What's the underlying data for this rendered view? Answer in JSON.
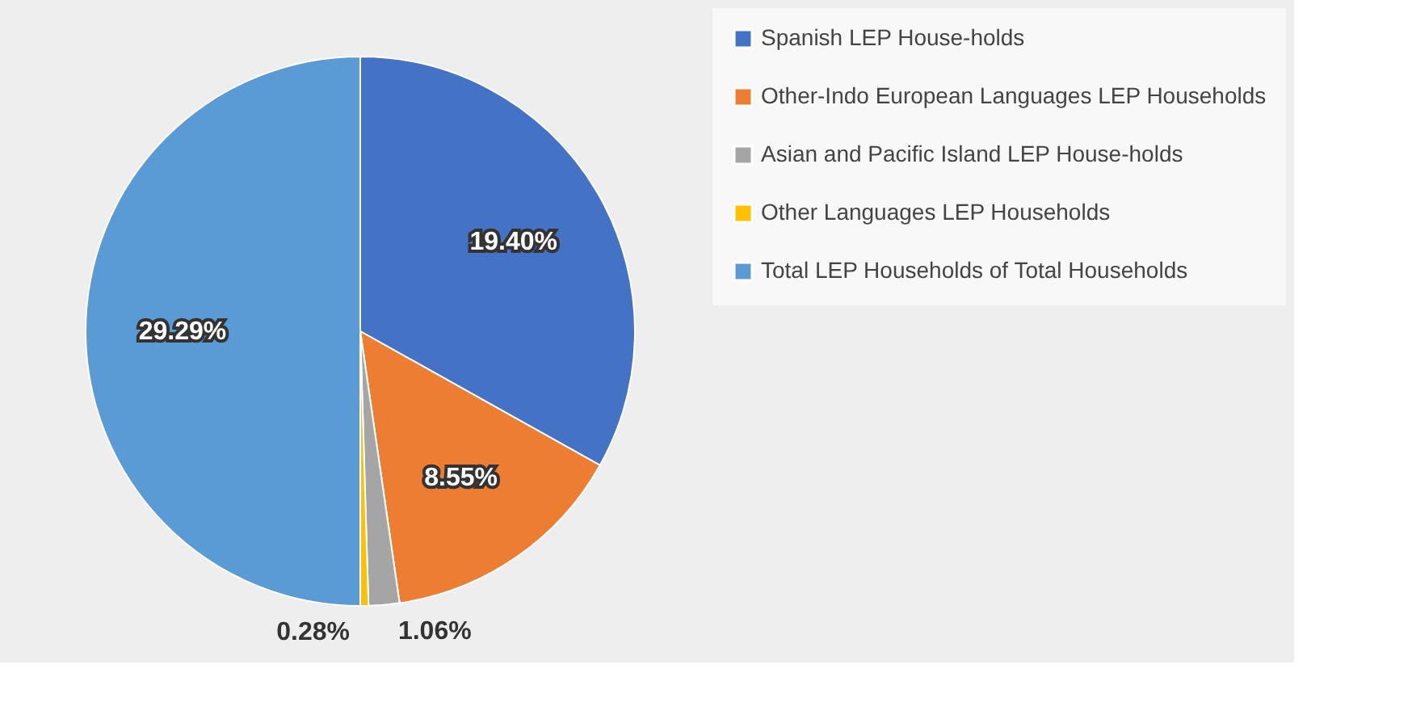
{
  "chart_data": {
    "type": "pie",
    "categories": [
      "Spanish LEP House-holds",
      "Other-Indo European Languages LEP Households",
      "Asian and Pacific Island LEP House-holds",
      "Other Languages LEP Households",
      "Total LEP Households of Total Households"
    ],
    "values": [
      19.4,
      8.55,
      1.06,
      0.28,
      29.29
    ],
    "colors": [
      "#4472c4",
      "#ed7d31",
      "#a5a5a5",
      "#ffc000",
      "#5b9bd5"
    ],
    "value_labels": [
      "19.40%",
      "8.55%",
      "1.06%",
      "0.28%",
      "29.29%"
    ],
    "legend": "right"
  }
}
